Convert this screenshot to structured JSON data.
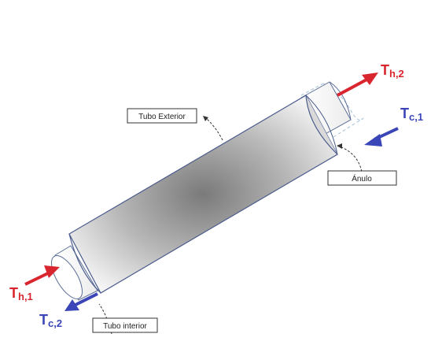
{
  "labels": {
    "outer_tube": "Tubo Exterior",
    "annulus": "Ánulo",
    "inner_tube": "Tubo interior"
  },
  "streams": {
    "hot_out": {
      "main": "T",
      "sub": "h,2"
    },
    "cold_in": {
      "main": "T",
      "sub": "c,1"
    },
    "hot_in": {
      "main": "T",
      "sub": "h,1"
    },
    "cold_out": {
      "main": "T",
      "sub": "c,2"
    }
  },
  "colors": {
    "hot": "#d9262e",
    "cold": "#3a46b8",
    "tube_outline": "#4a5c8c",
    "dashed": "#a0b8d0"
  }
}
